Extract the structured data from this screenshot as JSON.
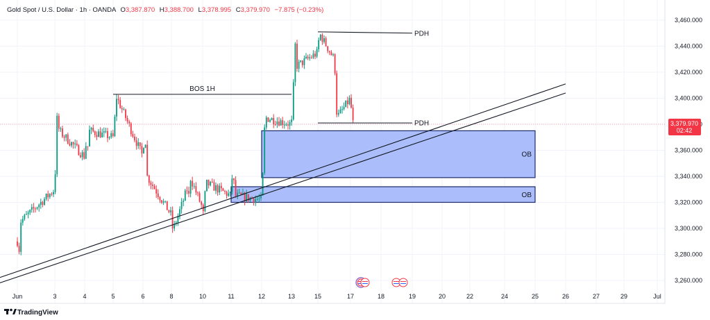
{
  "header": {
    "symbol": "Gold Spot / U.S. Dollar · 1h · OANDA",
    "o_label": "O",
    "o_value": "3,387.870",
    "h_label": "H",
    "h_value": "3,388.700",
    "l_label": "L",
    "l_value": "3,378.995",
    "c_label": "C",
    "c_value": "3,379.970",
    "change": "−7.875 (−0.23%)"
  },
  "last_price": {
    "value": 3379.97,
    "label": "3,379.970",
    "countdown": "02:42"
  },
  "branding": {
    "text": "TradingView"
  },
  "colors": {
    "up": "#089981",
    "down": "#f23645",
    "box_fill": "#a6bbfb",
    "box_stroke": "#1c2a6b",
    "line": "#131722",
    "price_tag": "#f23645",
    "last_line": "#f7a5ab"
  },
  "icons": [
    "calendar-event-icon-us",
    "calendar-event-icon-us"
  ],
  "chart_data": {
    "type": "candlestick",
    "symbol": "XAUUSD",
    "timeframe": "1h",
    "ylim": [
      3250,
      3465
    ],
    "y_ticks": [
      3260,
      3280,
      3300,
      3320,
      3340,
      3360,
      3380,
      3400,
      3420,
      3440,
      3460
    ],
    "y_tick_labels": [
      "3,260.000",
      "3,280.000",
      "3,300.000",
      "3,320.000",
      "3,340.000",
      "3,360.000",
      "3,380.000",
      "3,400.000",
      "3,420.000",
      "3,440.000",
      "3,460.000"
    ],
    "x_ticks": [
      {
        "label": "Jun",
        "date": "2025-06-02"
      },
      {
        "label": "3",
        "date": "2025-06-03"
      },
      {
        "label": "4",
        "date": "2025-06-04"
      },
      {
        "label": "5",
        "date": "2025-06-05"
      },
      {
        "label": "6",
        "date": "2025-06-06"
      },
      {
        "label": "8",
        "date": "2025-06-08"
      },
      {
        "label": "10",
        "date": "2025-06-10"
      },
      {
        "label": "11",
        "date": "2025-06-11"
      },
      {
        "label": "12",
        "date": "2025-06-12"
      },
      {
        "label": "13",
        "date": "2025-06-13"
      },
      {
        "label": "15",
        "date": "2025-06-15"
      },
      {
        "label": "17",
        "date": "2025-06-17"
      },
      {
        "label": "18",
        "date": "2025-06-18"
      },
      {
        "label": "19",
        "date": "2025-06-19"
      },
      {
        "label": "20",
        "date": "2025-06-20"
      },
      {
        "label": "22",
        "date": "2025-06-22"
      },
      {
        "label": "24",
        "date": "2025-06-24"
      },
      {
        "label": "25",
        "date": "2025-06-25"
      },
      {
        "label": "26",
        "date": "2025-06-26"
      },
      {
        "label": "27",
        "date": "2025-06-27"
      },
      {
        "label": "29",
        "date": "2025-06-29"
      },
      {
        "label": "Jul",
        "date": "2025-07-01"
      }
    ],
    "price_path": [
      [
        "2025-06-02",
        3290
      ],
      [
        "2025-06-02",
        3275
      ],
      [
        "2025-06-02",
        3305
      ],
      [
        "2025-06-03",
        3330
      ],
      [
        "2025-06-03",
        3375
      ],
      [
        "2025-06-03",
        3390
      ],
      [
        "2025-06-03",
        3375
      ],
      [
        "2025-06-04",
        3355
      ],
      [
        "2025-06-04",
        3365
      ],
      [
        "2025-06-04",
        3360
      ],
      [
        "2025-06-04",
        3375
      ],
      [
        "2025-06-05",
        3370
      ],
      [
        "2025-06-05",
        3380
      ],
      [
        "2025-06-05",
        3402
      ],
      [
        "2025-06-06",
        3355
      ],
      [
        "2025-06-06",
        3375
      ],
      [
        "2025-06-06",
        3365
      ],
      [
        "2025-06-06",
        3340
      ],
      [
        "2025-06-08",
        3310
      ],
      [
        "2025-06-08",
        3298
      ],
      [
        "2025-06-09",
        3330
      ],
      [
        "2025-06-09",
        3320
      ],
      [
        "2025-06-09",
        3340
      ],
      [
        "2025-06-10",
        3315
      ],
      [
        "2025-06-10",
        3305
      ],
      [
        "2025-06-10",
        3335
      ],
      [
        "2025-06-11",
        3325
      ],
      [
        "2025-06-11",
        3345
      ],
      [
        "2025-06-11",
        3335
      ],
      [
        "2025-06-11",
        3325
      ],
      [
        "2025-06-12",
        3322
      ],
      [
        "2025-06-12",
        3345
      ],
      [
        "2025-06-12",
        3375
      ],
      [
        "2025-06-12",
        3385
      ],
      [
        "2025-06-13",
        3380
      ],
      [
        "2025-06-13",
        3395
      ],
      [
        "2025-06-13",
        3430
      ],
      [
        "2025-06-13",
        3445
      ],
      [
        "2025-06-13",
        3425
      ],
      [
        "2025-06-15",
        3435
      ],
      [
        "2025-06-15",
        3450
      ],
      [
        "2025-06-16",
        3430
      ],
      [
        "2025-06-16",
        3415
      ],
      [
        "2025-06-16",
        3385
      ],
      [
        "2025-06-17",
        3400
      ],
      [
        "2025-06-17",
        3385
      ],
      [
        "2025-06-17",
        3380
      ]
    ],
    "lines": [
      {
        "label": "BOS 1H",
        "from": [
          "2025-06-05",
          3403
        ],
        "to": [
          "2025-06-13",
          3403
        ]
      },
      {
        "label": "PDH",
        "from": [
          "2025-06-15",
          3451
        ],
        "to": [
          "2025-06-19",
          3450
        ]
      },
      {
        "label": "PDH",
        "from": [
          "2025-06-15",
          3381
        ],
        "to": [
          "2025-06-19",
          3381
        ]
      },
      {
        "label": "",
        "from": [
          "2025-06-01",
          3257
        ],
        "to": [
          "2025-06-26",
          3411
        ]
      },
      {
        "label": "",
        "from": [
          "2025-06-01",
          3253
        ],
        "to": [
          "2025-06-26",
          3404
        ]
      }
    ],
    "zones": [
      {
        "label": "OB",
        "from": "2025-06-12",
        "to": "2025-06-25",
        "top": 3375,
        "bottom": 3339
      },
      {
        "label": "OB",
        "from": "2025-06-11",
        "to": "2025-06-25",
        "top": 3332,
        "bottom": 3320
      }
    ]
  }
}
